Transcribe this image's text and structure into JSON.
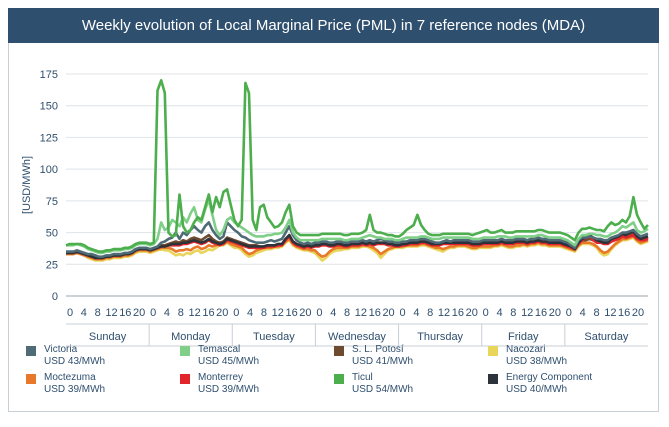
{
  "chart_data": {
    "type": "line",
    "title": "Weekly evolution of Local Marginal Price (PML) in 7 reference nodes (MDA)",
    "ylabel": "[USD/MWh]",
    "xlabel": "",
    "ylim": [
      0,
      175
    ],
    "yticks": [
      0,
      25,
      50,
      75,
      100,
      125,
      150,
      175
    ],
    "grid": true,
    "legend_position": "bottom",
    "days": [
      "Sunday",
      "Monday",
      "Tuesday",
      "Wednesday",
      "Thursday",
      "Friday",
      "Saturday"
    ],
    "hour_ticks": [
      "0",
      "4",
      "8",
      "12",
      "16",
      "20"
    ],
    "series": [
      {
        "name": "Victoria",
        "value_label": "USD 43/MWh",
        "color": "#4f6b76",
        "values": [
          35,
          35,
          35,
          36,
          35,
          34,
          33,
          33,
          32,
          31,
          31,
          32,
          32,
          33,
          33,
          33,
          34,
          34,
          35,
          37,
          38,
          38,
          38,
          37,
          38,
          39,
          42,
          43,
          45,
          46,
          50,
          45,
          50,
          48,
          52,
          55,
          52,
          50,
          55,
          58,
          52,
          48,
          45,
          47,
          58,
          55,
          52,
          50,
          47,
          46,
          44,
          43,
          42,
          42,
          42,
          43,
          44,
          43,
          44,
          45,
          50,
          55,
          48,
          44,
          42,
          41,
          42,
          41,
          42,
          42,
          43,
          43,
          42,
          42,
          43,
          43,
          42,
          42,
          43,
          43,
          43,
          44,
          43,
          44,
          43,
          44,
          45,
          44,
          43,
          43,
          42,
          42,
          43,
          43,
          44,
          44,
          44,
          45,
          45,
          44,
          43,
          42,
          42,
          43,
          44,
          43,
          44,
          44,
          44,
          44,
          44,
          43,
          43,
          43,
          44,
          44,
          44,
          44,
          44,
          45,
          44,
          44,
          44,
          45,
          45,
          45,
          44,
          45,
          45,
          46,
          45,
          45,
          44,
          44,
          44,
          44,
          43,
          42,
          40,
          38,
          44,
          46,
          46,
          47,
          46,
          45,
          45,
          44,
          44,
          46,
          47,
          48,
          50,
          50,
          51,
          52,
          49,
          47,
          48,
          49
        ]
      },
      {
        "name": "Temascal",
        "value_label": "USD 45/MWh",
        "color": "#7fcf88",
        "values": [
          40,
          40,
          40,
          41,
          40,
          39,
          37,
          36,
          35,
          34,
          34,
          35,
          35,
          36,
          36,
          36,
          37,
          37,
          38,
          40,
          41,
          41,
          41,
          40,
          41,
          45,
          58,
          52,
          54,
          60,
          58,
          55,
          62,
          58,
          65,
          70,
          60,
          58,
          68,
          76,
          64,
          52,
          48,
          52,
          60,
          62,
          58,
          56,
          54,
          52,
          50,
          48,
          47,
          47,
          47,
          48,
          48,
          49,
          49,
          50,
          54,
          60,
          50,
          46,
          44,
          44,
          44,
          44,
          44,
          44,
          45,
          45,
          45,
          45,
          45,
          45,
          44,
          44,
          45,
          45,
          45,
          46,
          47,
          48,
          47,
          46,
          46,
          45,
          45,
          45,
          44,
          44,
          45,
          46,
          46,
          46,
          46,
          47,
          47,
          46,
          45,
          45,
          45,
          46,
          46,
          46,
          46,
          46,
          46,
          46,
          46,
          45,
          45,
          45,
          46,
          46,
          46,
          46,
          47,
          47,
          47,
          46,
          46,
          47,
          47,
          47,
          47,
          47,
          47,
          48,
          48,
          47,
          46,
          46,
          46,
          46,
          45,
          44,
          42,
          40,
          45,
          48,
          48,
          49,
          49,
          48,
          48,
          47,
          47,
          49,
          50,
          52,
          55,
          54,
          56,
          58,
          52,
          50,
          51,
          53
        ]
      },
      {
        "name": "S. L. Potosí",
        "value_label": "USD 41/MWh",
        "color": "#6e4a2f",
        "values": [
          34,
          34,
          34,
          35,
          34,
          33,
          32,
          31,
          30,
          30,
          30,
          31,
          31,
          32,
          32,
          32,
          33,
          33,
          34,
          36,
          37,
          37,
          37,
          36,
          37,
          38,
          40,
          40,
          41,
          42,
          43,
          42,
          44,
          43,
          45,
          46,
          45,
          44,
          46,
          48,
          45,
          43,
          42,
          43,
          46,
          45,
          44,
          43,
          42,
          41,
          40,
          40,
          40,
          39,
          39,
          40,
          40,
          40,
          41,
          41,
          45,
          48,
          43,
          41,
          40,
          39,
          40,
          39,
          40,
          40,
          41,
          41,
          40,
          40,
          41,
          41,
          40,
          40,
          41,
          41,
          41,
          42,
          41,
          42,
          41,
          42,
          42,
          42,
          41,
          41,
          40,
          40,
          41,
          41,
          42,
          42,
          42,
          43,
          43,
          42,
          41,
          41,
          41,
          42,
          42,
          42,
          42,
          42,
          42,
          42,
          42,
          41,
          41,
          41,
          42,
          42,
          42,
          42,
          42,
          43,
          42,
          42,
          42,
          43,
          43,
          43,
          42,
          43,
          43,
          44,
          43,
          43,
          42,
          42,
          42,
          42,
          41,
          40,
          39,
          37,
          42,
          44,
          44,
          45,
          44,
          43,
          43,
          42,
          42,
          44,
          45,
          46,
          47,
          47,
          48,
          49,
          46,
          45,
          45,
          46
        ]
      },
      {
        "name": "Nacozari",
        "value_label": "USD 38/MWh",
        "color": "#e9d55a",
        "values": [
          33,
          33,
          33,
          34,
          33,
          32,
          30,
          29,
          28,
          28,
          28,
          29,
          29,
          30,
          30,
          30,
          31,
          31,
          32,
          34,
          35,
          35,
          35,
          34,
          35,
          36,
          37,
          36,
          36,
          34,
          32,
          33,
          32,
          34,
          33,
          35,
          36,
          34,
          35,
          37,
          36,
          38,
          40,
          40,
          42,
          40,
          38,
          38,
          36,
          33,
          31,
          32,
          34,
          35,
          36,
          37,
          37,
          38,
          38,
          39,
          42,
          44,
          40,
          38,
          37,
          36,
          36,
          35,
          34,
          31,
          28,
          30,
          33,
          35,
          36,
          36,
          37,
          37,
          38,
          38,
          38,
          39,
          39,
          38,
          36,
          34,
          30,
          33,
          36,
          37,
          38,
          38,
          38,
          39,
          39,
          39,
          39,
          40,
          40,
          39,
          38,
          37,
          36,
          35,
          37,
          38,
          38,
          39,
          39,
          39,
          38,
          37,
          37,
          38,
          38,
          38,
          38,
          39,
          39,
          40,
          39,
          38,
          38,
          39,
          39,
          40,
          39,
          40,
          40,
          41,
          40,
          40,
          39,
          39,
          39,
          39,
          38,
          37,
          36,
          35,
          39,
          41,
          41,
          41,
          40,
          38,
          34,
          32,
          33,
          37,
          40,
          42,
          44,
          44,
          45,
          46,
          43,
          41,
          42,
          43
        ]
      },
      {
        "name": "Moctezuma",
        "value_label": "USD 39/MWh",
        "color": "#e8782a",
        "values": [
          33,
          33,
          33,
          34,
          33,
          32,
          31,
          30,
          29,
          29,
          29,
          30,
          30,
          31,
          31,
          31,
          32,
          32,
          33,
          35,
          36,
          36,
          36,
          35,
          36,
          37,
          38,
          38,
          38,
          37,
          35,
          36,
          36,
          37,
          36,
          38,
          39,
          37,
          38,
          40,
          39,
          40,
          41,
          41,
          43,
          41,
          40,
          39,
          38,
          35,
          33,
          34,
          36,
          37,
          38,
          38,
          38,
          39,
          39,
          40,
          43,
          45,
          41,
          39,
          38,
          37,
          37,
          36,
          36,
          33,
          31,
          32,
          35,
          37,
          38,
          38,
          38,
          38,
          39,
          39,
          39,
          40,
          40,
          39,
          38,
          36,
          33,
          35,
          37,
          38,
          39,
          39,
          39,
          40,
          40,
          40,
          40,
          41,
          41,
          40,
          39,
          38,
          38,
          37,
          38,
          39,
          39,
          40,
          40,
          40,
          39,
          38,
          38,
          39,
          39,
          39,
          39,
          40,
          40,
          41,
          40,
          39,
          39,
          40,
          40,
          41,
          40,
          41,
          41,
          42,
          41,
          41,
          40,
          40,
          40,
          40,
          39,
          38,
          37,
          36,
          40,
          42,
          42,
          42,
          41,
          39,
          36,
          34,
          35,
          38,
          41,
          43,
          45,
          45,
          46,
          47,
          44,
          42,
          43,
          44
        ]
      },
      {
        "name": "Monterrey",
        "value_label": "USD 39/MWh",
        "color": "#e2252b",
        "values": [
          34,
          34,
          34,
          35,
          34,
          33,
          32,
          31,
          30,
          30,
          30,
          31,
          31,
          32,
          32,
          32,
          33,
          33,
          34,
          36,
          37,
          37,
          37,
          36,
          37,
          38,
          39,
          39,
          40,
          40,
          40,
          40,
          41,
          41,
          42,
          43,
          42,
          41,
          42,
          44,
          42,
          41,
          40,
          41,
          44,
          43,
          42,
          41,
          40,
          39,
          38,
          38,
          38,
          38,
          38,
          39,
          39,
          39,
          40,
          40,
          44,
          47,
          42,
          40,
          39,
          38,
          39,
          38,
          39,
          39,
          40,
          40,
          39,
          39,
          40,
          40,
          39,
          39,
          40,
          40,
          40,
          41,
          40,
          41,
          40,
          41,
          41,
          41,
          40,
          40,
          39,
          39,
          40,
          40,
          41,
          41,
          41,
          42,
          42,
          41,
          40,
          40,
          40,
          41,
          41,
          41,
          41,
          41,
          41,
          41,
          41,
          40,
          40,
          40,
          41,
          41,
          41,
          41,
          41,
          42,
          41,
          41,
          41,
          42,
          42,
          42,
          41,
          42,
          42,
          43,
          42,
          42,
          41,
          41,
          41,
          41,
          40,
          39,
          38,
          37,
          41,
          44,
          46,
          47,
          44,
          42,
          42,
          41,
          41,
          43,
          44,
          45,
          47,
          46,
          47,
          48,
          45,
          44,
          44,
          45
        ]
      },
      {
        "name": "Ticul",
        "value_label": "USD 54/MWh",
        "color": "#4cae4c",
        "values": [
          40,
          41,
          41,
          41,
          41,
          40,
          38,
          37,
          36,
          35,
          35,
          36,
          36,
          37,
          37,
          37,
          38,
          38,
          39,
          41,
          42,
          42,
          42,
          41,
          42,
          162,
          170,
          160,
          50,
          47,
          48,
          80,
          55,
          50,
          52,
          58,
          62,
          60,
          70,
          80,
          66,
          78,
          70,
          82,
          84,
          72,
          60,
          55,
          60,
          168,
          160,
          60,
          52,
          70,
          72,
          62,
          58,
          54,
          55,
          58,
          66,
          72,
          55,
          50,
          48,
          48,
          48,
          48,
          48,
          48,
          49,
          49,
          49,
          49,
          49,
          49,
          48,
          48,
          49,
          49,
          49,
          50,
          52,
          64,
          52,
          50,
          50,
          49,
          48,
          48,
          47,
          47,
          49,
          52,
          54,
          56,
          64,
          56,
          52,
          49,
          48,
          48,
          48,
          49,
          49,
          49,
          49,
          49,
          49,
          49,
          49,
          48,
          49,
          50,
          51,
          52,
          50,
          50,
          51,
          52,
          50,
          50,
          50,
          51,
          51,
          51,
          51,
          51,
          51,
          52,
          52,
          51,
          50,
          50,
          50,
          50,
          49,
          48,
          46,
          44,
          50,
          53,
          53,
          54,
          53,
          52,
          52,
          51,
          55,
          58,
          56,
          57,
          60,
          58,
          63,
          78,
          64,
          58,
          53,
          56
        ]
      },
      {
        "name": "Energy Component",
        "value_label": "USD 40/MWh",
        "color": "#2d333a",
        "values": [
          34,
          34,
          34,
          35,
          34,
          33,
          32,
          31,
          30,
          30,
          30,
          31,
          31,
          32,
          32,
          32,
          33,
          33,
          34,
          36,
          37,
          37,
          37,
          36,
          37,
          38,
          39,
          39,
          40,
          41,
          41,
          41,
          42,
          42,
          43,
          44,
          43,
          42,
          43,
          45,
          43,
          42,
          41,
          42,
          45,
          44,
          43,
          42,
          41,
          40,
          39,
          39,
          39,
          39,
          39,
          40,
          40,
          40,
          41,
          41,
          45,
          48,
          43,
          41,
          40,
          39,
          40,
          39,
          40,
          40,
          41,
          41,
          40,
          40,
          41,
          41,
          40,
          40,
          41,
          41,
          41,
          42,
          41,
          42,
          41,
          42,
          42,
          42,
          41,
          41,
          40,
          40,
          41,
          41,
          42,
          42,
          42,
          43,
          43,
          42,
          41,
          41,
          41,
          42,
          42,
          42,
          42,
          42,
          42,
          42,
          42,
          41,
          41,
          41,
          42,
          42,
          42,
          42,
          42,
          43,
          42,
          42,
          42,
          43,
          43,
          43,
          42,
          43,
          43,
          44,
          43,
          43,
          42,
          42,
          42,
          42,
          41,
          40,
          39,
          37,
          42,
          45,
          46,
          48,
          46,
          44,
          43,
          42,
          42,
          45,
          46,
          47,
          49,
          48,
          50,
          51,
          47,
          45,
          46,
          47
        ]
      }
    ]
  }
}
